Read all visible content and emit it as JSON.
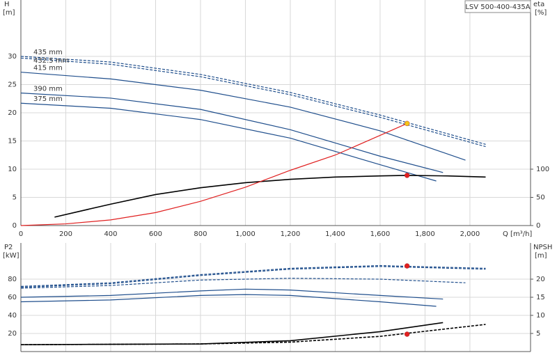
{
  "chart_data": [
    {
      "type": "line",
      "title": "LSV 500-400-435A",
      "y_label": "H",
      "y_unit": "[m]",
      "y2_label": "eta",
      "y2_unit": "[%]",
      "x_label": "Q [m³/h]",
      "xlim": [
        0,
        2270
      ],
      "ylim": [
        0,
        40
      ],
      "y2lim": [
        0,
        400
      ],
      "grid": true,
      "xticks": [
        0,
        200,
        400,
        600,
        800,
        {
          "value": 1000,
          "label": "1,000"
        },
        {
          "value": 1200,
          "label": "1,200"
        },
        {
          "value": 1400,
          "label": "1,400"
        },
        {
          "value": 1600,
          "label": "1,600"
        },
        {
          "value": 1800,
          "label": "1,800"
        },
        {
          "value": 2000,
          "label": "2,000"
        }
      ],
      "yticks": [
        0,
        5,
        10,
        15,
        20,
        25,
        30
      ],
      "y2ticks": [
        0,
        50,
        100
      ],
      "series": [
        {
          "name": "435 mm",
          "color": "#1f4e8c",
          "dashed": true,
          "x": [
            0,
            400,
            800,
            1200,
            1600,
            2070
          ],
          "values": [
            30,
            29,
            26.8,
            23.6,
            19.6,
            14.4
          ]
        },
        {
          "name": "432.5 mm",
          "color": "#1f4e8c",
          "dashed": true,
          "x": [
            0,
            400,
            800,
            1200,
            1600,
            2070
          ],
          "values": [
            29.7,
            28.6,
            26.4,
            23.2,
            19.2,
            14
          ]
        },
        {
          "name": "415 mm",
          "color": "#1f4e8c",
          "dashed": false,
          "x": [
            0,
            400,
            800,
            1200,
            1600,
            1980
          ],
          "values": [
            27.2,
            26,
            24,
            21,
            16.8,
            11.6
          ]
        },
        {
          "name": "390 mm",
          "color": "#1f4e8c",
          "dashed": false,
          "x": [
            0,
            400,
            800,
            1200,
            1600,
            1880
          ],
          "values": [
            23.5,
            22.6,
            20.6,
            17,
            12.3,
            9.4
          ]
        },
        {
          "name": "375 mm",
          "color": "#1f4e8c",
          "dashed": false,
          "x": [
            0,
            400,
            800,
            1200,
            1600,
            1850
          ],
          "values": [
            21.7,
            20.8,
            18.8,
            15.5,
            10.8,
            7.9
          ]
        },
        {
          "color": "#000000",
          "axis": "y2",
          "dashed": false,
          "x": [
            150,
            400,
            600,
            800,
            1000,
            1200,
            1400,
            1600,
            1720,
            1900,
            2070
          ],
          "values": [
            15,
            38,
            55,
            67,
            76,
            82,
            86,
            88,
            89,
            88,
            86
          ]
        },
        {
          "color": "#e02020",
          "dashed": false,
          "x": [
            0,
            200,
            400,
            600,
            800,
            1000,
            1200,
            1400,
            1600,
            1720
          ],
          "values": [
            0,
            0.3,
            1,
            2.3,
            4.3,
            6.8,
            9.8,
            12.5,
            16,
            18.1
          ]
        }
      ],
      "points": [
        {
          "x": 1720,
          "y": 18.1,
          "color": "#f5c518"
        },
        {
          "x": 1720,
          "y": 89,
          "color": "#e02020",
          "axis": "y2"
        }
      ]
    },
    {
      "type": "line",
      "y_label": "P2",
      "y_unit": "[kW]",
      "y2_label": "NPSH",
      "y2_unit": "[m]",
      "xlim": [
        0,
        2270
      ],
      "ylim": [
        0,
        120
      ],
      "y2lim": [
        0,
        30
      ],
      "grid": true,
      "xgrid": [
        200,
        400,
        600,
        800,
        1000,
        1200,
        1400,
        1600,
        1800,
        2000
      ],
      "yticks": [
        20,
        40,
        60,
        80
      ],
      "y2ticks": [
        5,
        10,
        15,
        20
      ],
      "series": [
        {
          "color": "#1f4e8c",
          "dashed": true,
          "x": [
            0,
            400,
            800,
            1200,
            1600,
            2070
          ],
          "values": [
            72,
            76,
            85,
            92,
            95,
            92
          ]
        },
        {
          "color": "#1f4e8c",
          "dashed": true,
          "x": [
            0,
            400,
            800,
            1200,
            1600,
            2070
          ],
          "values": [
            71,
            75,
            84,
            91,
            94,
            91
          ]
        },
        {
          "color": "#1f4e8c",
          "dashed": true,
          "x": [
            0,
            400,
            800,
            1200,
            1600,
            1980
          ],
          "values": [
            70,
            73,
            79,
            81,
            80,
            76
          ]
        },
        {
          "color": "#1f4e8c",
          "dashed": false,
          "x": [
            0,
            400,
            800,
            1000,
            1200,
            1600,
            1880
          ],
          "values": [
            60,
            62,
            67,
            69,
            68,
            62,
            58
          ]
        },
        {
          "color": "#1f4e8c",
          "dashed": false,
          "x": [
            0,
            400,
            800,
            1000,
            1200,
            1600,
            1850
          ],
          "values": [
            55,
            57,
            62,
            63,
            62,
            55,
            50
          ]
        },
        {
          "color": "#000000",
          "axis": "y2",
          "dashed": false,
          "x": [
            0,
            400,
            800,
            1200,
            1600,
            1880
          ],
          "values": [
            1.9,
            2,
            2.1,
            3,
            5.5,
            8
          ]
        },
        {
          "color": "#000000",
          "axis": "y2",
          "dashed": true,
          "x": [
            0,
            400,
            800,
            1200,
            1600,
            2070
          ],
          "values": [
            1.9,
            2,
            2.1,
            2.6,
            4.2,
            7.5
          ]
        }
      ],
      "points": [
        {
          "x": 1720,
          "y": 94.6,
          "color": "#e02020"
        },
        {
          "x": 1720,
          "y": 4.8,
          "color": "#e02020",
          "axis": "y2"
        }
      ]
    }
  ]
}
